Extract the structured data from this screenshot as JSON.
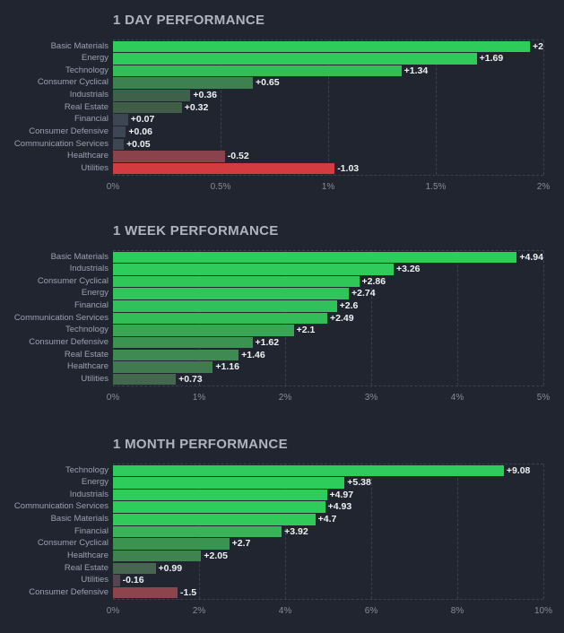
{
  "page": {
    "background": "#212530",
    "grid_color": "#3a4150"
  },
  "chart_data": [
    {
      "type": "bar",
      "orientation": "horizontal",
      "title": "1 DAY PERFORMANCE",
      "xlabel": "",
      "ylabel": "",
      "xlim": [
        0,
        2
      ],
      "x_ticks": [
        "0%",
        "0.5%",
        "1%",
        "1.5%",
        "2%"
      ],
      "grid": "vertical-dashed",
      "legend": "none",
      "categories": [
        "Basic Materials",
        "Energy",
        "Technology",
        "Consumer Cyclical",
        "Industrials",
        "Real Estate",
        "Financial",
        "Consumer Defensive",
        "Communication Services",
        "Healthcare",
        "Utilities"
      ],
      "values": [
        2.0,
        1.69,
        1.34,
        0.65,
        0.36,
        0.32,
        0.07,
        0.06,
        0.05,
        -0.52,
        -1.03
      ],
      "bars": [
        {
          "category": "Basic Materials",
          "value": 2.0,
          "label": "+2",
          "color": "#2ecc5a"
        },
        {
          "category": "Energy",
          "value": 1.69,
          "label": "+1.69",
          "color": "#2fca59"
        },
        {
          "category": "Technology",
          "value": 1.34,
          "label": "+1.34",
          "color": "#34bc58"
        },
        {
          "category": "Consumer Cyclical",
          "value": 0.65,
          "label": "+0.65",
          "color": "#3d8150"
        },
        {
          "category": "Industrials",
          "value": 0.36,
          "label": "+0.36",
          "color": "#3f6049"
        },
        {
          "category": "Real Estate",
          "value": 0.32,
          "label": "+0.32",
          "color": "#405d47"
        },
        {
          "category": "Financial",
          "value": 0.07,
          "label": "+0.07",
          "color": "#3d4653"
        },
        {
          "category": "Consumer Defensive",
          "value": 0.06,
          "label": "+0.06",
          "color": "#3d4653"
        },
        {
          "category": "Communication Services",
          "value": 0.05,
          "label": "+0.05",
          "color": "#3d4653"
        },
        {
          "category": "Healthcare",
          "value": -0.52,
          "label": "-0.52",
          "color": "#8a434b"
        },
        {
          "category": "Utilities",
          "value": -1.03,
          "label": "-1.03",
          "color": "#d23c41"
        }
      ]
    },
    {
      "type": "bar",
      "orientation": "horizontal",
      "title": "1 WEEK PERFORMANCE",
      "xlabel": "",
      "ylabel": "",
      "xlim": [
        0,
        5
      ],
      "x_ticks": [
        "0%",
        "1%",
        "2%",
        "3%",
        "4%",
        "5%"
      ],
      "grid": "vertical-dashed",
      "legend": "none",
      "categories": [
        "Basic Materials",
        "Industrials",
        "Consumer Cyclical",
        "Energy",
        "Financial",
        "Communication Services",
        "Technology",
        "Consumer Defensive",
        "Real Estate",
        "Healthcare",
        "Utilities"
      ],
      "values": [
        4.94,
        3.26,
        2.86,
        2.74,
        2.6,
        2.49,
        2.1,
        1.62,
        1.46,
        1.16,
        0.73
      ],
      "bars": [
        {
          "category": "Basic Materials",
          "value": 4.94,
          "label": "+4.94",
          "color": "#2ecc5a"
        },
        {
          "category": "Industrials",
          "value": 3.26,
          "label": "+3.26",
          "color": "#2ecc5a"
        },
        {
          "category": "Consumer Cyclical",
          "value": 2.86,
          "label": "+2.86",
          "color": "#30c75a"
        },
        {
          "category": "Energy",
          "value": 2.74,
          "label": "+2.74",
          "color": "#30c459"
        },
        {
          "category": "Financial",
          "value": 2.6,
          "label": "+2.6",
          "color": "#31c059"
        },
        {
          "category": "Communication Services",
          "value": 2.49,
          "label": "+2.49",
          "color": "#32bd58"
        },
        {
          "category": "Technology",
          "value": 2.1,
          "label": "+2.1",
          "color": "#38a755"
        },
        {
          "category": "Consumer Defensive",
          "value": 1.62,
          "label": "+1.62",
          "color": "#3c9252"
        },
        {
          "category": "Real Estate",
          "value": 1.46,
          "label": "+1.46",
          "color": "#3e8a51"
        },
        {
          "category": "Healthcare",
          "value": 1.16,
          "label": "+1.16",
          "color": "#407a4e"
        },
        {
          "category": "Utilities",
          "value": 0.73,
          "label": "+0.73",
          "color": "#43684d"
        }
      ]
    },
    {
      "type": "bar",
      "orientation": "horizontal",
      "title": "1 MONTH PERFORMANCE",
      "xlabel": "",
      "ylabel": "",
      "xlim": [
        0,
        10
      ],
      "x_ticks": [
        "0%",
        "2%",
        "4%",
        "6%",
        "8%",
        "10%"
      ],
      "grid": "vertical-dashed",
      "legend": "none",
      "categories": [
        "Technology",
        "Energy",
        "Industrials",
        "Communication Services",
        "Basic Materials",
        "Financial",
        "Consumer Cyclical",
        "Healthcare",
        "Real Estate",
        "Utilities",
        "Consumer Defensive"
      ],
      "values": [
        9.08,
        5.38,
        4.97,
        4.93,
        4.7,
        3.92,
        2.7,
        2.05,
        0.99,
        -0.16,
        -1.5
      ],
      "bars": [
        {
          "category": "Technology",
          "value": 9.08,
          "label": "+9.08",
          "color": "#2ecc5a"
        },
        {
          "category": "Energy",
          "value": 5.38,
          "label": "+5.38",
          "color": "#2ecc5a"
        },
        {
          "category": "Industrials",
          "value": 4.97,
          "label": "+4.97",
          "color": "#2ecc5a"
        },
        {
          "category": "Communication Services",
          "value": 4.93,
          "label": "+4.93",
          "color": "#2ecc5a"
        },
        {
          "category": "Basic Materials",
          "value": 4.7,
          "label": "+4.7",
          "color": "#2fca59"
        },
        {
          "category": "Financial",
          "value": 3.92,
          "label": "+3.92",
          "color": "#36b457"
        },
        {
          "category": "Consumer Cyclical",
          "value": 2.7,
          "label": "+2.7",
          "color": "#3c9251"
        },
        {
          "category": "Healthcare",
          "value": 2.05,
          "label": "+2.05",
          "color": "#3f8450"
        },
        {
          "category": "Real Estate",
          "value": 0.99,
          "label": "+0.99",
          "color": "#47664f"
        },
        {
          "category": "Utilities",
          "value": -0.16,
          "label": "-0.16",
          "color": "#544651"
        },
        {
          "category": "Consumer Defensive",
          "value": -1.5,
          "label": "-1.5",
          "color": "#8e444c"
        }
      ]
    }
  ]
}
